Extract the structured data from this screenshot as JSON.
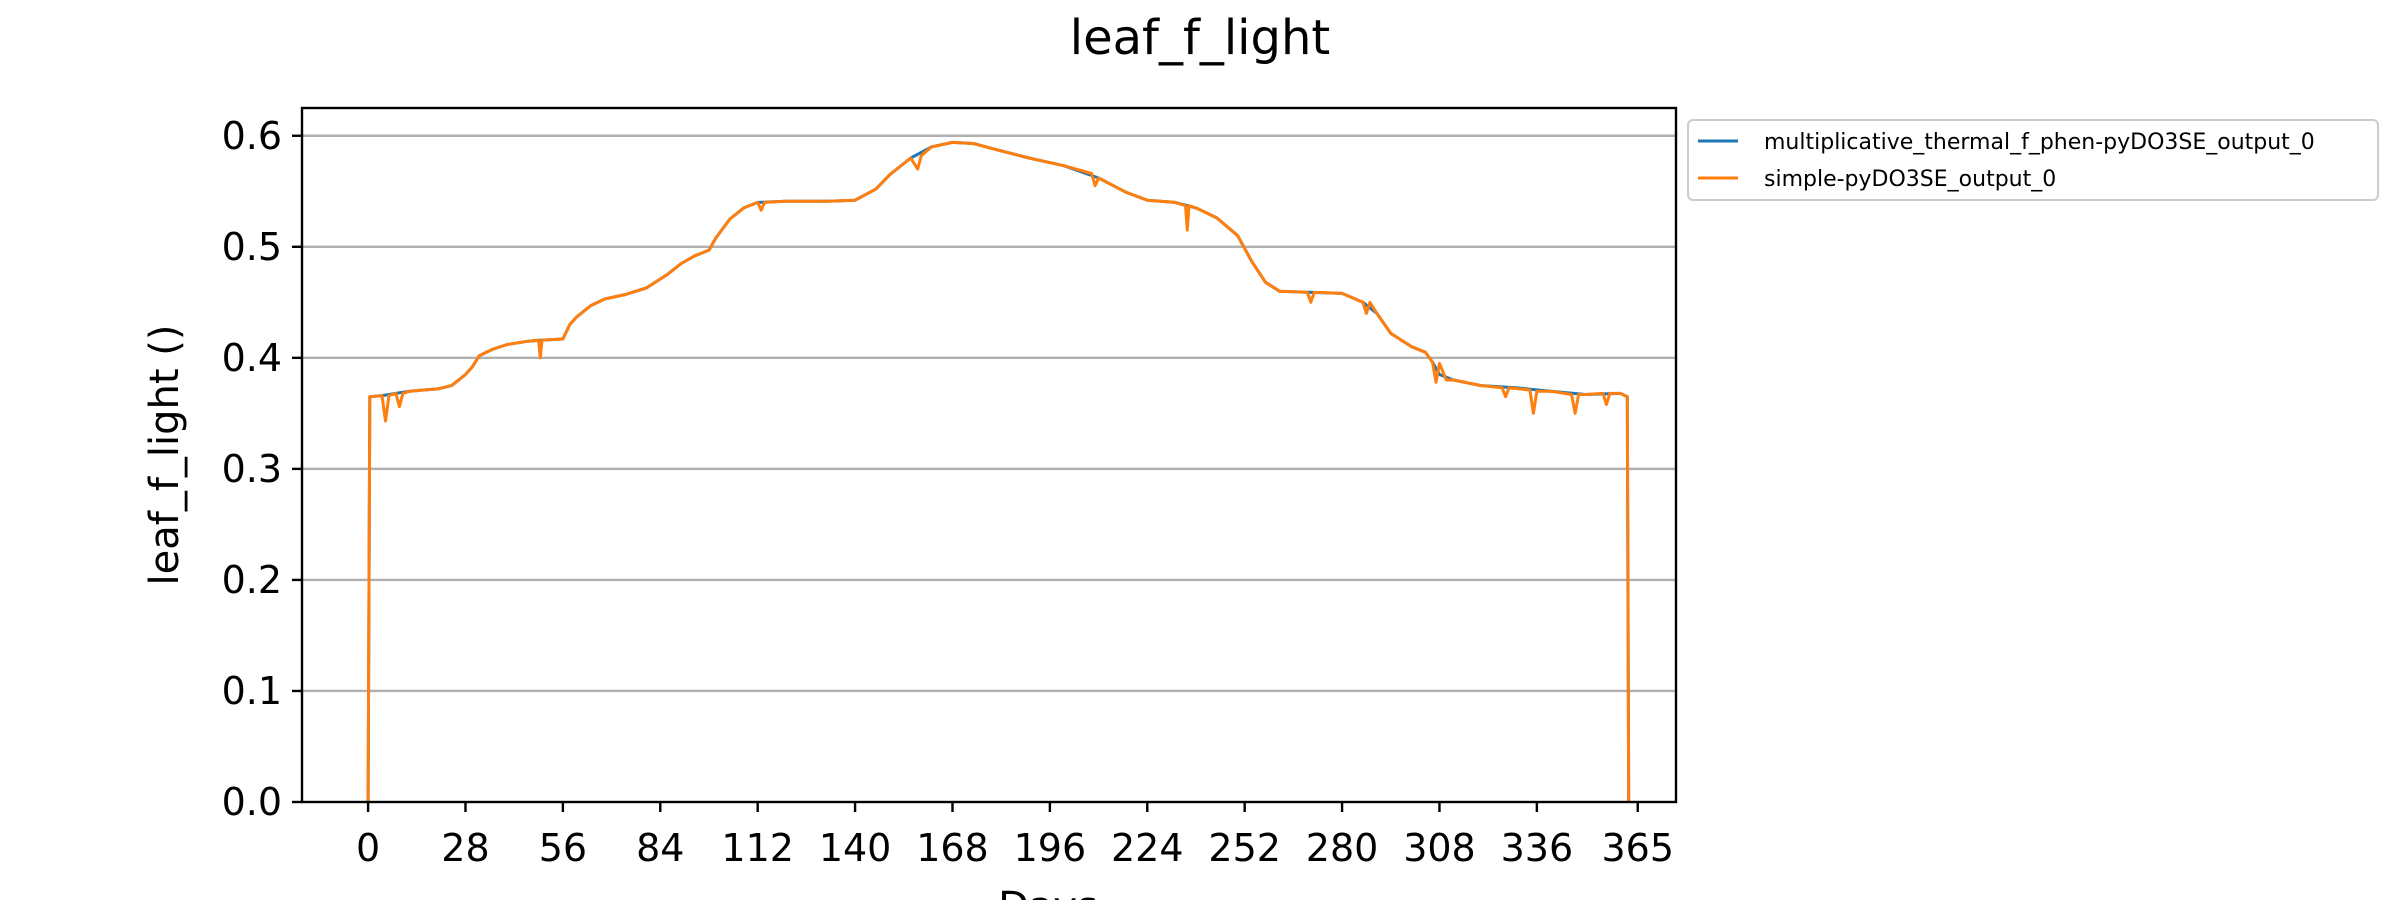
{
  "chart_data": {
    "type": "line",
    "title": "leaf_f_light",
    "xlabel": "Days",
    "ylabel": "leaf_f_light ()",
    "xlim": [
      -19,
      376
    ],
    "ylim": [
      0,
      0.625
    ],
    "xticks": [
      0,
      28,
      56,
      84,
      112,
      140,
      168,
      196,
      224,
      252,
      280,
      308,
      336,
      365
    ],
    "yticks": [
      0.0,
      0.1,
      0.2,
      0.3,
      0.4,
      0.5,
      0.6
    ],
    "ytick_labels": [
      "0.0",
      "0.1",
      "0.2",
      "0.3",
      "0.4",
      "0.5",
      "0.6"
    ],
    "grid": "horizontal",
    "legend_position": "outside-top-right",
    "series": [
      {
        "name": "multiplicative_thermal_f_phen-pyDO3SE_output_0",
        "color": "#1f77b4",
        "points": [
          [
            0,
            0
          ],
          [
            0.5,
            0.365
          ],
          [
            4,
            0.366
          ],
          [
            8,
            0.368
          ],
          [
            12,
            0.37
          ],
          [
            16,
            0.371
          ],
          [
            20,
            0.372
          ],
          [
            24,
            0.375
          ],
          [
            28,
            0.385
          ],
          [
            30,
            0.392
          ],
          [
            32,
            0.402
          ],
          [
            36,
            0.408
          ],
          [
            40,
            0.412
          ],
          [
            46,
            0.415
          ],
          [
            50,
            0.416
          ],
          [
            56,
            0.417
          ],
          [
            58,
            0.43
          ],
          [
            60,
            0.437
          ],
          [
            64,
            0.447
          ],
          [
            68,
            0.453
          ],
          [
            74,
            0.457
          ],
          [
            80,
            0.463
          ],
          [
            86,
            0.475
          ],
          [
            90,
            0.485
          ],
          [
            94,
            0.492
          ],
          [
            98,
            0.497
          ],
          [
            100,
            0.508
          ],
          [
            104,
            0.525
          ],
          [
            108,
            0.535
          ],
          [
            112,
            0.54
          ],
          [
            120,
            0.541
          ],
          [
            132,
            0.541
          ],
          [
            140,
            0.542
          ],
          [
            146,
            0.552
          ],
          [
            150,
            0.565
          ],
          [
            156,
            0.58
          ],
          [
            162,
            0.59
          ],
          [
            168,
            0.594
          ],
          [
            174,
            0.593
          ],
          [
            180,
            0.588
          ],
          [
            190,
            0.58
          ],
          [
            200,
            0.573
          ],
          [
            210,
            0.562
          ],
          [
            218,
            0.549
          ],
          [
            224,
            0.542
          ],
          [
            232,
            0.54
          ],
          [
            238,
            0.535
          ],
          [
            244,
            0.526
          ],
          [
            250,
            0.51
          ],
          [
            254,
            0.487
          ],
          [
            258,
            0.468
          ],
          [
            262,
            0.46
          ],
          [
            270,
            0.459
          ],
          [
            280,
            0.458
          ],
          [
            286,
            0.45
          ],
          [
            290,
            0.44
          ],
          [
            294,
            0.422
          ],
          [
            300,
            0.41
          ],
          [
            304,
            0.405
          ],
          [
            306,
            0.396
          ],
          [
            308,
            0.385
          ],
          [
            312,
            0.38
          ],
          [
            320,
            0.375
          ],
          [
            330,
            0.373
          ],
          [
            340,
            0.37
          ],
          [
            350,
            0.367
          ],
          [
            360,
            0.368
          ],
          [
            362,
            0.365
          ],
          [
            362.4,
            0
          ]
        ]
      },
      {
        "name": "simple-pyDO3SE_output_0",
        "color": "#ff7f0e",
        "points": [
          [
            0,
            0
          ],
          [
            0.5,
            0.365
          ],
          [
            4,
            0.366
          ],
          [
            5,
            0.343
          ],
          [
            6,
            0.366
          ],
          [
            8,
            0.368
          ],
          [
            9,
            0.356
          ],
          [
            10,
            0.368
          ],
          [
            12,
            0.37
          ],
          [
            16,
            0.371
          ],
          [
            20,
            0.372
          ],
          [
            24,
            0.375
          ],
          [
            28,
            0.385
          ],
          [
            30,
            0.392
          ],
          [
            32,
            0.402
          ],
          [
            36,
            0.408
          ],
          [
            40,
            0.412
          ],
          [
            46,
            0.415
          ],
          [
            49,
            0.416
          ],
          [
            49.5,
            0.4
          ],
          [
            50,
            0.416
          ],
          [
            56,
            0.417
          ],
          [
            58,
            0.43
          ],
          [
            60,
            0.437
          ],
          [
            64,
            0.447
          ],
          [
            68,
            0.453
          ],
          [
            74,
            0.457
          ],
          [
            80,
            0.463
          ],
          [
            86,
            0.475
          ],
          [
            90,
            0.485
          ],
          [
            94,
            0.492
          ],
          [
            98,
            0.497
          ],
          [
            100,
            0.508
          ],
          [
            104,
            0.525
          ],
          [
            108,
            0.535
          ],
          [
            112,
            0.54
          ],
          [
            113,
            0.533
          ],
          [
            114,
            0.54
          ],
          [
            120,
            0.541
          ],
          [
            132,
            0.541
          ],
          [
            140,
            0.542
          ],
          [
            146,
            0.552
          ],
          [
            150,
            0.565
          ],
          [
            156,
            0.58
          ],
          [
            158,
            0.57
          ],
          [
            159,
            0.582
          ],
          [
            162,
            0.59
          ],
          [
            168,
            0.594
          ],
          [
            174,
            0.593
          ],
          [
            180,
            0.588
          ],
          [
            190,
            0.58
          ],
          [
            200,
            0.573
          ],
          [
            208,
            0.566
          ],
          [
            209,
            0.555
          ],
          [
            210,
            0.562
          ],
          [
            218,
            0.549
          ],
          [
            224,
            0.542
          ],
          [
            232,
            0.54
          ],
          [
            235,
            0.537
          ],
          [
            235.5,
            0.515
          ],
          [
            236,
            0.537
          ],
          [
            238,
            0.535
          ],
          [
            244,
            0.526
          ],
          [
            250,
            0.51
          ],
          [
            254,
            0.487
          ],
          [
            258,
            0.468
          ],
          [
            262,
            0.46
          ],
          [
            270,
            0.459
          ],
          [
            271,
            0.45
          ],
          [
            272,
            0.459
          ],
          [
            280,
            0.458
          ],
          [
            286,
            0.45
          ],
          [
            287,
            0.44
          ],
          [
            288,
            0.45
          ],
          [
            290,
            0.44
          ],
          [
            294,
            0.422
          ],
          [
            300,
            0.41
          ],
          [
            304,
            0.405
          ],
          [
            306,
            0.396
          ],
          [
            307,
            0.378
          ],
          [
            308,
            0.395
          ],
          [
            310,
            0.38
          ],
          [
            312,
            0.38
          ],
          [
            320,
            0.375
          ],
          [
            326,
            0.373
          ],
          [
            327,
            0.365
          ],
          [
            328,
            0.373
          ],
          [
            334,
            0.371
          ],
          [
            335,
            0.35
          ],
          [
            336,
            0.37
          ],
          [
            340,
            0.37
          ],
          [
            346,
            0.367
          ],
          [
            347,
            0.35
          ],
          [
            348,
            0.367
          ],
          [
            350,
            0.367
          ],
          [
            355,
            0.368
          ],
          [
            356,
            0.358
          ],
          [
            357,
            0.368
          ],
          [
            360,
            0.368
          ],
          [
            362,
            0.365
          ],
          [
            362.4,
            0
          ]
        ]
      }
    ]
  }
}
